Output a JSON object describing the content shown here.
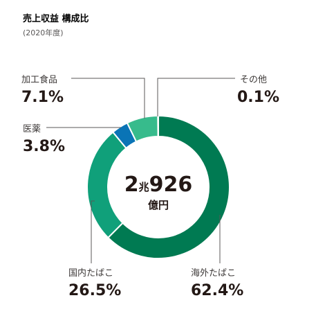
{
  "title": "売上収益 構成比",
  "subtitle": "(2020年度)",
  "center": {
    "num_a": "2",
    "unit_a": "兆",
    "num_b": "926",
    "unit_b": "億円"
  },
  "chart_data": {
    "type": "pie",
    "title": "売上収益 構成比",
    "subtitle": "(2020年度)",
    "slices": [
      {
        "label": "海外たばこ",
        "value": 62.4,
        "display": "62.4%",
        "color": "#007a52"
      },
      {
        "label": "国内たばこ",
        "value": 26.5,
        "display": "26.5%",
        "color": "#10a07a"
      },
      {
        "label": "医薬",
        "value": 3.8,
        "display": "3.8%",
        "color": "#0a74b6"
      },
      {
        "label": "加工食品",
        "value": 7.1,
        "display": "7.1%",
        "color": "#37bb8c"
      },
      {
        "label": "その他",
        "value": 0.1,
        "display": "0.1%",
        "color": "#5cc49a"
      }
    ]
  }
}
